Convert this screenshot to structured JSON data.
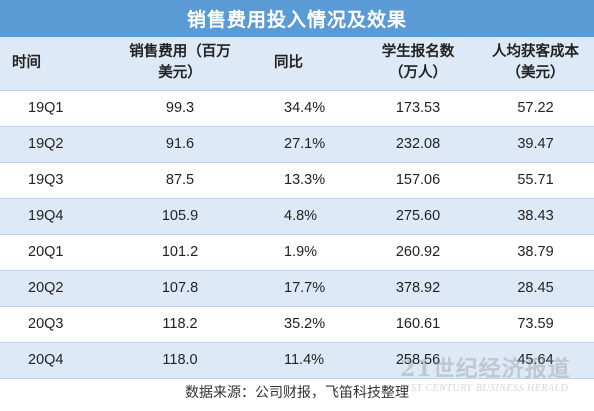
{
  "colors": {
    "title_bg": "#5b9bd5",
    "title_text": "#ffffff",
    "header_bg": "#dde9f6",
    "row_alt_bg": "#dde9f6",
    "row_bg": "#ffffff",
    "grid_line": "#bcd3ec",
    "text": "#222222"
  },
  "title": "销售费用投入情况及效果",
  "header": {
    "col1": [
      "时间"
    ],
    "col2": [
      "销售费用（百万",
      "美元）"
    ],
    "col3": [
      "同比"
    ],
    "col4": [
      "学生报名数",
      "（万人）"
    ],
    "col5": [
      "人均获客成本",
      "（美元）"
    ]
  },
  "rows": [
    {
      "quarter": "19Q1",
      "sales_expense": "99.3",
      "yoy": "34.4%",
      "enrollments": "173.53",
      "cac": "57.22"
    },
    {
      "quarter": "19Q2",
      "sales_expense": "91.6",
      "yoy": "27.1%",
      "enrollments": "232.08",
      "cac": "39.47"
    },
    {
      "quarter": "19Q3",
      "sales_expense": "87.5",
      "yoy": "13.3%",
      "enrollments": "157.06",
      "cac": "55.71"
    },
    {
      "quarter": "19Q4",
      "sales_expense": "105.9",
      "yoy": "4.8%",
      "enrollments": "275.60",
      "cac": "38.43"
    },
    {
      "quarter": "20Q1",
      "sales_expense": "101.2",
      "yoy": "1.9%",
      "enrollments": "260.92",
      "cac": "38.79"
    },
    {
      "quarter": "20Q2",
      "sales_expense": "107.8",
      "yoy": "17.7%",
      "enrollments": "378.92",
      "cac": "28.45"
    },
    {
      "quarter": "20Q3",
      "sales_expense": "118.2",
      "yoy": "35.2%",
      "enrollments": "160.61",
      "cac": "73.59"
    },
    {
      "quarter": "20Q4",
      "sales_expense": "118.0",
      "yoy": "11.4%",
      "enrollments": "258.56",
      "cac": "45.64"
    }
  ],
  "source": "数据来源：公司财报，飞笛科技整理",
  "watermark": {
    "cn": "21世纪经济报道",
    "en": "21ST CENTURY BUSINESS HERALD"
  }
}
